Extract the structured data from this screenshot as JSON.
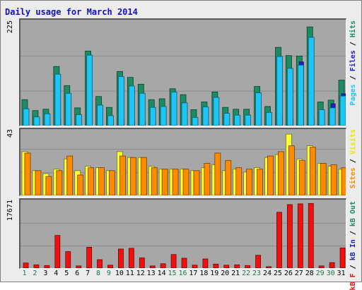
{
  "chart_data": [
    {
      "type": "bar",
      "panel": "top",
      "title": "Daily usage for March 2014",
      "ymax_label": "225",
      "ylim": [
        0,
        225
      ],
      "legend": [
        "Pages",
        "Files",
        "Hits"
      ],
      "categories": [
        "1",
        "2",
        "3",
        "4",
        "5",
        "6",
        "7",
        "8",
        "9",
        "10",
        "11",
        "12",
        "13",
        "14",
        "15",
        "16",
        "17",
        "18",
        "19",
        "20",
        "21",
        "22",
        "23",
        "24",
        "25",
        "26",
        "27",
        "28",
        "29",
        "30",
        "31"
      ],
      "series": [
        {
          "name": "Hits",
          "color": "#1d8c62",
          "values": [
            57,
            33,
            36,
            130,
            88,
            39,
            164,
            64,
            40,
            119,
            106,
            91,
            57,
            59,
            81,
            68,
            35,
            52,
            74,
            40,
            36,
            36,
            86,
            42,
            172,
            154,
            153,
            217,
            52,
            56,
            100
          ]
        },
        {
          "name": "Files",
          "color": "#1ec6f7",
          "values": [
            37,
            19,
            26,
            113,
            71,
            24,
            155,
            45,
            22,
            108,
            87,
            71,
            40,
            42,
            74,
            50,
            18,
            41,
            62,
            27,
            23,
            23,
            72,
            29,
            152,
            126,
            133,
            194,
            35,
            39,
            65
          ]
        },
        {
          "name": "Pages",
          "color": "#2020d0",
          "values": [
            5,
            3,
            3,
            15,
            12,
            4,
            18,
            6,
            3,
            14,
            11,
            10,
            6,
            6,
            9,
            7,
            3,
            5,
            8,
            4,
            3,
            3,
            9,
            4,
            18,
            16,
            140,
            18,
            5,
            48,
            70
          ]
        }
      ]
    },
    {
      "type": "bar",
      "panel": "middle",
      "ymax_label": "43",
      "ylim": [
        0,
        43
      ],
      "legend": [
        "Visits",
        "Sites"
      ],
      "categories": [
        "1",
        "2",
        "3",
        "4",
        "5",
        "6",
        "7",
        "8",
        "9",
        "10",
        "11",
        "12",
        "13",
        "14",
        "15",
        "16",
        "17",
        "18",
        "19",
        "20",
        "21",
        "22",
        "23",
        "24",
        "25",
        "26",
        "27",
        "28",
        "29",
        "30",
        "31"
      ],
      "series": [
        {
          "name": "Visits",
          "color": "#ffff30",
          "values": [
            30,
            17,
            15,
            18,
            25,
            17,
            20,
            19,
            17,
            30,
            26,
            26,
            20,
            18,
            18,
            18,
            17,
            19,
            21,
            17,
            18,
            16,
            19,
            26,
            28,
            42,
            25,
            34,
            22,
            20,
            18
          ]
        },
        {
          "name": "Sites",
          "color": "#ff8c00",
          "values": [
            29,
            17,
            13,
            17,
            27,
            14,
            19,
            19,
            17,
            27,
            26,
            26,
            19,
            18,
            18,
            18,
            17,
            22,
            29,
            24,
            19,
            18,
            18,
            27,
            30,
            34,
            24,
            33,
            22,
            21,
            19
          ]
        }
      ]
    },
    {
      "type": "bar",
      "panel": "bottom",
      "ymax_label": "17671",
      "ylim": [
        0,
        17671
      ],
      "legend": [
        "kB F",
        "kB In",
        "kB Out"
      ],
      "categories": [
        "1",
        "2",
        "3",
        "4",
        "5",
        "6",
        "7",
        "8",
        "9",
        "10",
        "11",
        "12",
        "13",
        "14",
        "15",
        "16",
        "17",
        "18",
        "19",
        "20",
        "21",
        "22",
        "23",
        "24",
        "25",
        "26",
        "27",
        "28",
        "29",
        "30",
        "31"
      ],
      "series": [
        {
          "name": "kB F",
          "color": "#f01010",
          "values": [
            1400,
            900,
            700,
            8900,
            4500,
            600,
            5700,
            2300,
            800,
            5200,
            5400,
            2800,
            600,
            1200,
            3700,
            2700,
            800,
            2500,
            1100,
            800,
            900,
            700,
            3500,
            400,
            15200,
            17300,
            17500,
            17600,
            600,
            1500,
            5500
          ]
        }
      ]
    }
  ],
  "x_label_colors": {
    "weekday": "#000000",
    "weekend": "#1a7a4a"
  },
  "weekend_days": [
    "1",
    "2",
    "8",
    "9",
    "15",
    "16",
    "22",
    "23",
    "29",
    "30"
  ]
}
